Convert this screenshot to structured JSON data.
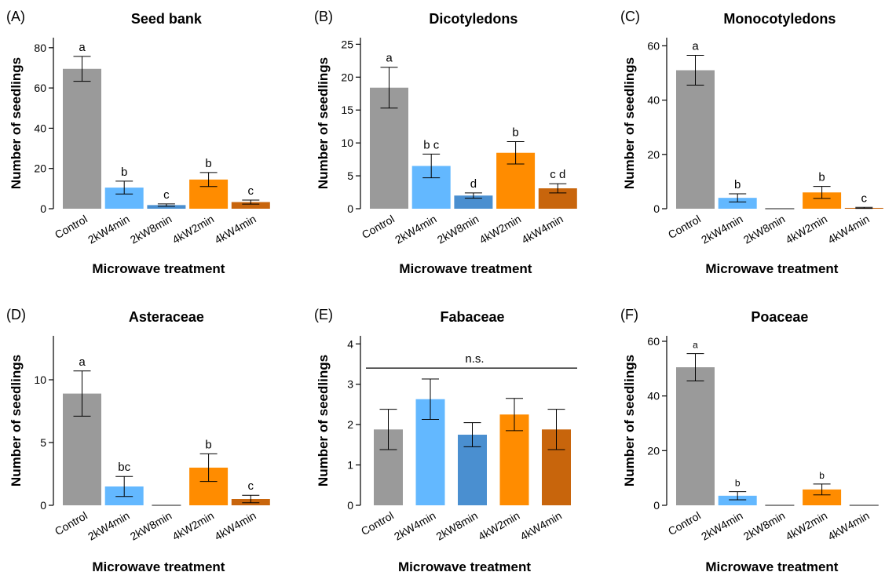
{
  "colors": {
    "Control": "#9a9a9a",
    "2kW4min": "#63b8ff",
    "2kW8min": "#4a8fd0",
    "4kW2min": "#ff8c00",
    "4kW4min": "#c8650c",
    "axis": "#000000"
  },
  "chart_data": [
    {
      "type": "bar",
      "panel": "(A)",
      "title": "Seed bank",
      "xlabel": "Microwave treatment",
      "ylabel": "Number of seedlings",
      "categories": [
        "Control",
        "2kW4min",
        "2kW8min",
        "4kW2min",
        "4kW4min"
      ],
      "values": [
        69.5,
        10.5,
        1.8,
        14.5,
        3.3
      ],
      "errors": [
        6.2,
        3.2,
        0.6,
        3.5,
        1.0
      ],
      "letters": [
        "a",
        "b",
        "c",
        "b",
        "c"
      ],
      "letter_size": "normal",
      "ylim": [
        0,
        85
      ],
      "yticks": [
        0,
        20,
        40,
        60,
        80
      ],
      "grid": false
    },
    {
      "type": "bar",
      "panel": "(B)",
      "title": "Dicotyledons",
      "xlabel": "Microwave treatment",
      "ylabel": "Number of seedlings",
      "categories": [
        "Control",
        "2kW4min",
        "2kW8min",
        "4kW2min",
        "4kW4min"
      ],
      "values": [
        18.4,
        6.5,
        2.0,
        8.5,
        3.1
      ],
      "errors": [
        3.1,
        1.8,
        0.4,
        1.7,
        0.7
      ],
      "letters": [
        "a",
        "b c",
        "d",
        "b",
        "c d"
      ],
      "letter_size": "normal",
      "ylim": [
        0,
        26
      ],
      "yticks": [
        0,
        5,
        10,
        15,
        20,
        25
      ],
      "grid": false
    },
    {
      "type": "bar",
      "panel": "(C)",
      "title": "Monocotyledons",
      "xlabel": "Microwave treatment",
      "ylabel": "Number of seedlings",
      "categories": [
        "Control",
        "2kW4min",
        "2kW8min",
        "4kW2min",
        "4kW4min"
      ],
      "values": [
        51,
        4,
        0,
        6,
        0.3
      ],
      "errors": [
        5.5,
        1.5,
        0,
        2.2,
        0.2
      ],
      "letters": [
        "a",
        "b",
        "",
        "b",
        "c"
      ],
      "letter_size": "normal",
      "ylim": [
        0,
        63
      ],
      "yticks": [
        0,
        20,
        40,
        60
      ],
      "grid": false
    },
    {
      "type": "bar",
      "panel": "(D)",
      "title": "Asteraceae",
      "xlabel": "Microwave treatment",
      "ylabel": "Number of seedlings",
      "categories": [
        "Control",
        "2kW4min",
        "2kW8min",
        "4kW2min",
        "4kW4min"
      ],
      "values": [
        8.9,
        1.5,
        0,
        3.0,
        0.5
      ],
      "errors": [
        1.8,
        0.8,
        0,
        1.1,
        0.3
      ],
      "letters": [
        "a",
        "bc",
        "",
        "b",
        "c"
      ],
      "letter_size": "normal",
      "ylim": [
        0,
        13.5
      ],
      "yticks": [
        0,
        5,
        10
      ],
      "grid": false
    },
    {
      "type": "bar",
      "panel": "(E)",
      "title": "Fabaceae",
      "xlabel": "Microwave treatment",
      "ylabel": "Number of seedlings",
      "categories": [
        "Control",
        "2kW4min",
        "2kW8min",
        "4kW2min",
        "4kW4min"
      ],
      "values": [
        1.88,
        2.63,
        1.75,
        2.25,
        1.88
      ],
      "errors": [
        0.5,
        0.5,
        0.3,
        0.4,
        0.5
      ],
      "letters": [
        "",
        "",
        "",
        "",
        ""
      ],
      "letter_size": "normal",
      "annotation": "n.s.",
      "annotation_y": 3.4,
      "ylim": [
        0,
        4.2
      ],
      "yticks": [
        0,
        1,
        2,
        3,
        4
      ],
      "grid": false
    },
    {
      "type": "bar",
      "panel": "(F)",
      "title": "Poaceae",
      "xlabel": "Microwave treatment",
      "ylabel": "Number of seedlings",
      "categories": [
        "Control",
        "2kW4min",
        "2kW8min",
        "4kW2min",
        "4kW4min"
      ],
      "values": [
        50.5,
        3.5,
        0,
        5.8,
        0
      ],
      "errors": [
        5.0,
        1.5,
        0,
        2.0,
        0
      ],
      "letters": [
        "a",
        "b",
        "",
        "b",
        ""
      ],
      "letter_size": "small",
      "ylim": [
        0,
        62
      ],
      "yticks": [
        0,
        20,
        40,
        60
      ],
      "grid": false
    }
  ]
}
